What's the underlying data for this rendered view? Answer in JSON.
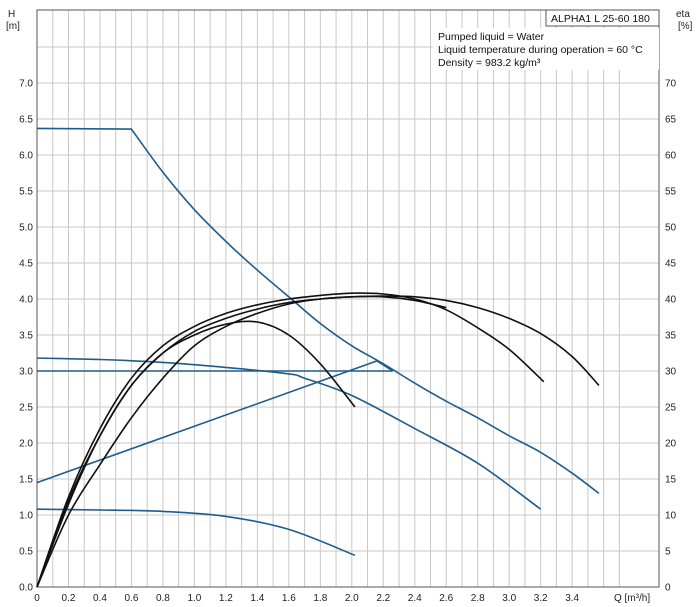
{
  "chart_data": {
    "type": "line",
    "title": "ALPHA1 L 25-60 180",
    "info": [
      "Pumped liquid = Water",
      "Liquid temperature during operation = 60 °C",
      "Density = 983.2 kg/m³"
    ],
    "left_axis_label": [
      "H",
      "[m]"
    ],
    "right_axis_label": [
      "eta",
      "[%]"
    ],
    "x_axis_label": "Q [m³/h]",
    "xlim": [
      0,
      3.8
    ],
    "ylim_left": [
      0,
      8
    ],
    "ylim_right": [
      0,
      80
    ],
    "x_ticks": [
      "0",
      "0.2",
      "0.4",
      "0.6",
      "0.8",
      "1.0",
      "1.2",
      "1.4",
      "1.6",
      "1.8",
      "2.0",
      "2.2",
      "2.4",
      "2.6",
      "2.8",
      "3.0",
      "3.2",
      "3.4"
    ],
    "y_ticks_left": [
      "0.0",
      "0.5",
      "1.0",
      "1.5",
      "2.0",
      "2.5",
      "3.0",
      "3.5",
      "4.0",
      "4.5",
      "5.0",
      "5.5",
      "6.0",
      "6.5",
      "7.0"
    ],
    "y_ticks_right": [
      "0",
      "5",
      "10",
      "15",
      "20",
      "25",
      "30",
      "35",
      "40",
      "45",
      "50",
      "55",
      "60",
      "65",
      "70"
    ],
    "grid": true,
    "colors": {
      "head": "#1f5c8b",
      "efficiency": "#111111",
      "grid": "#c8c8c8"
    },
    "head_curves": [
      {
        "x": [
          0,
          0.6,
          0.8,
          1.0,
          1.2,
          1.4,
          1.6,
          1.8,
          2.0,
          2.2,
          2.4,
          2.6,
          2.8,
          3.0,
          3.2,
          3.4,
          3.57
        ],
        "y": [
          6.37,
          6.36,
          5.76,
          5.24,
          4.8,
          4.4,
          4.03,
          3.66,
          3.35,
          3.1,
          2.83,
          2.58,
          2.35,
          2.1,
          1.87,
          1.58,
          1.3
        ]
      },
      {
        "x": [
          0,
          0.4,
          0.8,
          1.2,
          1.6,
          1.7,
          2.0,
          2.4,
          2.8,
          3.2
        ],
        "y": [
          3.18,
          3.16,
          3.12,
          3.05,
          2.96,
          2.9,
          2.66,
          2.2,
          1.72,
          1.08
        ]
      },
      {
        "x": [
          0,
          0.4,
          0.8,
          1.2,
          1.6,
          2.02
        ],
        "y": [
          1.08,
          1.07,
          1.05,
          0.98,
          0.8,
          0.44
        ]
      },
      {
        "x": [
          0,
          2.26
        ],
        "y": [
          3.0,
          3.0
        ]
      },
      {
        "x": [
          0,
          2.16,
          2.26
        ],
        "y": [
          1.45,
          3.14,
          3.0
        ]
      }
    ],
    "efficiency_curves": [
      {
        "x": [
          0,
          0.2,
          0.4,
          0.6,
          0.8,
          1.0,
          1.2,
          1.4,
          1.6,
          1.8,
          2.02
        ],
        "y": [
          0,
          12,
          21,
          28,
          32.5,
          35,
          36.5,
          36.8,
          35,
          31,
          25
        ]
      },
      {
        "x": [
          0,
          0.2,
          0.4,
          0.6,
          0.8,
          1.0,
          1.2,
          1.4,
          1.6,
          1.8,
          2.0,
          2.2,
          2.4,
          2.6,
          2.8,
          3.0,
          3.22
        ],
        "y": [
          0,
          12.5,
          22,
          29,
          33.5,
          36.2,
          38,
          39.2,
          40,
          40.5,
          40.8,
          40.7,
          40,
          38.5,
          36,
          33,
          28.5
        ]
      },
      {
        "x": [
          0,
          0.2,
          0.4,
          0.6,
          0.8,
          1.0,
          1.2,
          1.4,
          1.6,
          1.8,
          2.0,
          2.2,
          2.4,
          2.6,
          2.8,
          3.0,
          3.2,
          3.4,
          3.57
        ],
        "y": [
          0,
          11.5,
          21,
          28,
          32.5,
          35.5,
          37.3,
          38.6,
          39.5,
          40,
          40.3,
          40.4,
          40.3,
          39.8,
          38.8,
          37.3,
          35.2,
          32,
          28
        ]
      },
      {
        "x": [
          0,
          0.2,
          0.4,
          0.6,
          0.8,
          1.0,
          1.2,
          1.4,
          1.6,
          1.8,
          2.0,
          2.2,
          2.4,
          2.6
        ],
        "y": [
          0,
          10,
          17,
          23.5,
          29,
          33.5,
          36.2,
          38,
          39.3,
          40,
          40.3,
          40.3,
          39.8,
          38.8
        ]
      }
    ]
  }
}
